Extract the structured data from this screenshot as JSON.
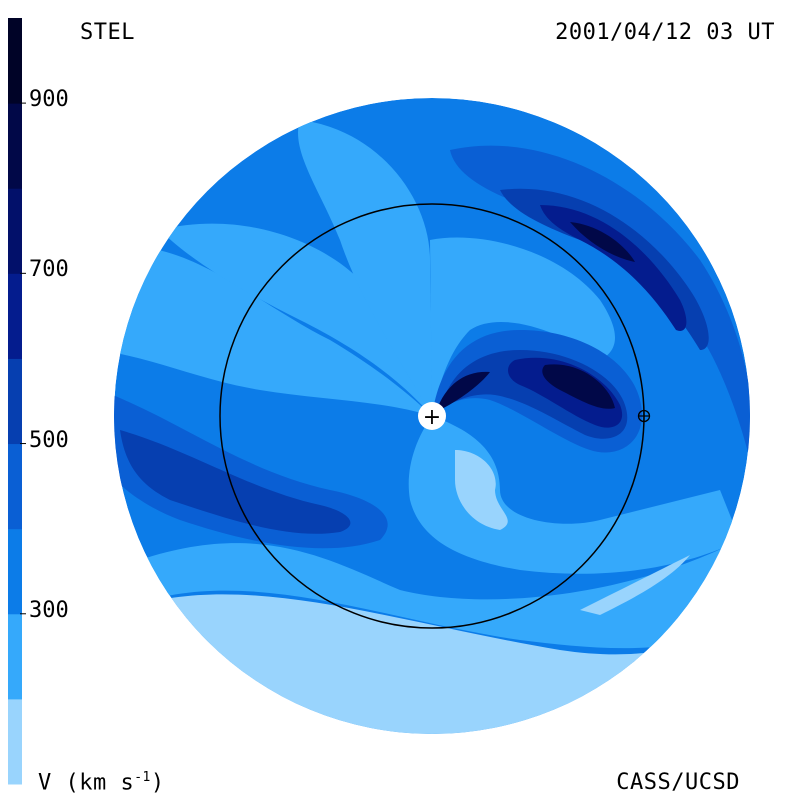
{
  "header": {
    "left_label": "STEL",
    "right_label": "2001/04/12 03 UT"
  },
  "footer": {
    "unit_label_main": "V (km s",
    "unit_label_exp": "-1",
    "unit_label_end": ")",
    "credit": "CASS/UCSD"
  },
  "colorbar": {
    "min": 100,
    "max": 1000,
    "ticks": [
      {
        "value": 900,
        "label": "900"
      },
      {
        "value": 700,
        "label": "700"
      },
      {
        "value": 500,
        "label": "500"
      },
      {
        "value": 300,
        "label": "300"
      }
    ],
    "levels": [
      {
        "from": 100,
        "to": 200,
        "color": "#99d4fd"
      },
      {
        "from": 200,
        "to": 300,
        "color": "#35a9fb"
      },
      {
        "from": 300,
        "to": 400,
        "color": "#0c7ce8"
      },
      {
        "from": 400,
        "to": 500,
        "color": "#0a5fd4"
      },
      {
        "from": 500,
        "to": 600,
        "color": "#063fb0"
      },
      {
        "from": 600,
        "to": 700,
        "color": "#041c8e"
      },
      {
        "from": 700,
        "to": 800,
        "color": "#02106a"
      },
      {
        "from": 800,
        "to": 900,
        "color": "#010848"
      },
      {
        "from": 900,
        "to": 1000,
        "color": "#000327"
      }
    ]
  },
  "plot": {
    "sun_symbol": "+",
    "earth_symbol": "⊕"
  }
}
